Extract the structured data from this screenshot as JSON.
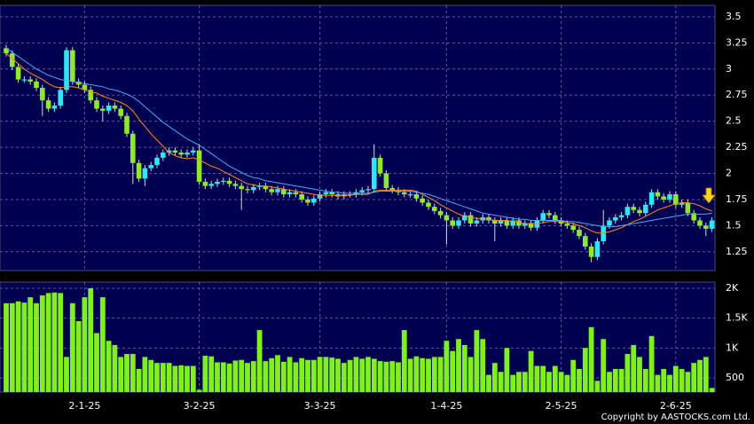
{
  "chart_data": {
    "type": "candlestick",
    "categories": [
      null,
      null,
      null,
      null,
      null,
      null,
      null,
      null,
      null,
      null,
      null,
      null,
      null,
      "2-1-25",
      null,
      null,
      null,
      null,
      null,
      null,
      null,
      null,
      null,
      null,
      null,
      null,
      null,
      null,
      null,
      null,
      null,
      null,
      "3-2-25",
      null,
      null,
      null,
      null,
      null,
      null,
      null,
      null,
      null,
      null,
      null,
      null,
      null,
      null,
      null,
      null,
      null,
      null,
      null,
      "3-3-25",
      null,
      null,
      null,
      null,
      null,
      null,
      null,
      null,
      null,
      null,
      null,
      null,
      null,
      null,
      null,
      null,
      null,
      null,
      null,
      null,
      "1-4-25",
      null,
      null,
      null,
      null,
      null,
      null,
      null,
      null,
      null,
      null,
      null,
      null,
      null,
      null,
      null,
      null,
      null,
      null,
      "2-5-25",
      null,
      null,
      null,
      null,
      null,
      null,
      null,
      null,
      null,
      null,
      null,
      null,
      null,
      null,
      null,
      null,
      null,
      null,
      "2-6-25",
      null,
      null,
      null,
      null,
      null,
      null
    ],
    "open": [
      3.2,
      3.15,
      3.02,
      2.9,
      2.9,
      2.88,
      2.82,
      2.7,
      2.62,
      2.65,
      2.8,
      3.18,
      2.88,
      2.85,
      2.8,
      2.7,
      2.62,
      2.6,
      2.65,
      2.62,
      2.55,
      2.38,
      2.1,
      1.95,
      2.05,
      2.08,
      2.15,
      2.2,
      2.22,
      2.2,
      2.18,
      2.2,
      2.22,
      1.92,
      1.88,
      1.9,
      1.92,
      1.93,
      1.9,
      1.88,
      1.85,
      1.84,
      1.87,
      1.88,
      1.85,
      1.82,
      1.85,
      1.8,
      1.82,
      1.8,
      1.75,
      1.72,
      1.76,
      1.8,
      1.82,
      1.8,
      1.78,
      1.8,
      1.8,
      1.82,
      1.84,
      1.85,
      2.15,
      2.0,
      1.86,
      1.84,
      1.82,
      1.8,
      1.8,
      1.76,
      1.72,
      1.68,
      1.64,
      1.6,
      1.55,
      1.5,
      1.55,
      1.6,
      1.52,
      1.55,
      1.58,
      1.55,
      1.52,
      1.55,
      1.5,
      1.55,
      1.5,
      1.52,
      1.48,
      1.55,
      1.62,
      1.6,
      1.55,
      1.52,
      1.5,
      1.46,
      1.4,
      1.3,
      1.2,
      1.35,
      1.5,
      1.55,
      1.58,
      1.6,
      1.68,
      1.65,
      1.62,
      1.7,
      1.82,
      1.78,
      1.75,
      1.8,
      1.7,
      1.72,
      1.62,
      1.55,
      1.5,
      1.47
    ],
    "high": [
      3.23,
      3.18,
      3.05,
      2.93,
      2.93,
      2.91,
      2.85,
      2.73,
      2.68,
      2.83,
      3.21,
      3.21,
      2.91,
      2.88,
      2.83,
      2.73,
      2.65,
      2.68,
      2.68,
      2.65,
      2.58,
      2.41,
      2.13,
      2.08,
      2.11,
      2.18,
      2.23,
      2.25,
      2.25,
      2.23,
      2.23,
      2.25,
      2.28,
      1.95,
      1.93,
      1.95,
      1.96,
      1.96,
      1.93,
      1.91,
      1.88,
      1.9,
      1.91,
      1.91,
      1.88,
      1.88,
      1.88,
      1.85,
      1.85,
      1.83,
      1.78,
      1.79,
      1.83,
      1.85,
      1.85,
      1.83,
      1.83,
      1.83,
      1.85,
      1.87,
      1.88,
      2.28,
      2.18,
      2.03,
      1.89,
      1.87,
      1.85,
      1.83,
      1.83,
      1.79,
      1.75,
      1.71,
      1.67,
      1.63,
      1.58,
      1.58,
      1.63,
      1.63,
      1.58,
      1.61,
      1.61,
      1.58,
      1.58,
      1.58,
      1.58,
      1.58,
      1.55,
      1.55,
      1.58,
      1.65,
      1.65,
      1.63,
      1.58,
      1.55,
      1.53,
      1.49,
      1.43,
      1.33,
      1.38,
      1.65,
      1.58,
      1.61,
      1.63,
      1.71,
      1.71,
      1.68,
      1.73,
      1.85,
      1.85,
      1.81,
      1.83,
      1.83,
      1.75,
      1.75,
      1.65,
      1.58,
      1.53,
      1.58
    ],
    "low": [
      3.12,
      2.99,
      2.87,
      2.87,
      2.85,
      2.79,
      2.55,
      2.59,
      2.59,
      2.62,
      2.77,
      2.85,
      2.82,
      2.77,
      2.67,
      2.59,
      2.5,
      2.57,
      2.59,
      2.52,
      2.35,
      1.9,
      1.92,
      1.88,
      2.02,
      2.05,
      2.12,
      2.17,
      2.17,
      2.15,
      2.15,
      2.17,
      1.89,
      1.85,
      1.85,
      1.87,
      1.89,
      1.87,
      1.85,
      1.65,
      1.81,
      1.81,
      1.84,
      1.82,
      1.79,
      1.79,
      1.77,
      1.77,
      1.77,
      1.72,
      1.69,
      1.69,
      1.73,
      1.77,
      1.77,
      1.75,
      1.75,
      1.77,
      1.77,
      1.79,
      1.81,
      1.82,
      1.97,
      1.83,
      1.81,
      1.79,
      1.77,
      1.77,
      1.73,
      1.69,
      1.65,
      1.61,
      1.57,
      1.32,
      1.47,
      1.47,
      1.52,
      1.49,
      1.49,
      1.52,
      1.52,
      1.35,
      1.49,
      1.47,
      1.47,
      1.47,
      1.47,
      1.45,
      1.45,
      1.52,
      1.57,
      1.52,
      1.49,
      1.47,
      1.43,
      1.37,
      1.27,
      1.15,
      1.17,
      1.32,
      1.47,
      1.52,
      1.55,
      1.57,
      1.62,
      1.59,
      1.59,
      1.67,
      1.75,
      1.72,
      1.72,
      1.67,
      1.67,
      1.59,
      1.52,
      1.47,
      1.4,
      1.44
    ],
    "close": [
      3.15,
      3.02,
      2.9,
      2.9,
      2.88,
      2.82,
      2.7,
      2.62,
      2.65,
      2.8,
      3.18,
      2.88,
      2.85,
      2.8,
      2.7,
      2.62,
      2.6,
      2.65,
      2.62,
      2.55,
      2.38,
      2.1,
      1.95,
      2.05,
      2.08,
      2.15,
      2.2,
      2.22,
      2.2,
      2.18,
      2.2,
      2.22,
      1.92,
      1.88,
      1.9,
      1.92,
      1.93,
      1.9,
      1.88,
      1.85,
      1.84,
      1.87,
      1.88,
      1.85,
      1.82,
      1.85,
      1.8,
      1.82,
      1.8,
      1.75,
      1.72,
      1.76,
      1.8,
      1.82,
      1.8,
      1.78,
      1.8,
      1.8,
      1.82,
      1.84,
      1.85,
      2.15,
      2.0,
      1.86,
      1.84,
      1.82,
      1.8,
      1.8,
      1.76,
      1.72,
      1.68,
      1.64,
      1.6,
      1.55,
      1.5,
      1.55,
      1.6,
      1.52,
      1.55,
      1.58,
      1.55,
      1.52,
      1.55,
      1.5,
      1.55,
      1.5,
      1.52,
      1.48,
      1.55,
      1.62,
      1.6,
      1.55,
      1.52,
      1.5,
      1.46,
      1.4,
      1.3,
      1.2,
      1.35,
      1.5,
      1.55,
      1.58,
      1.6,
      1.68,
      1.65,
      1.62,
      1.7,
      1.82,
      1.78,
      1.75,
      1.8,
      1.7,
      1.72,
      1.62,
      1.55,
      1.5,
      1.47,
      1.55
    ],
    "up_color": "#2ee6f5",
    "down_color": "#8ee82c",
    "series": [
      {
        "color": "#ff8c1a",
        "values": [
          3.15,
          3.1,
          3.05,
          3.0,
          2.96,
          2.93,
          2.9,
          2.86,
          2.83,
          2.82,
          2.83,
          2.83,
          2.82,
          2.8,
          2.78,
          2.77,
          2.74,
          2.72,
          2.7,
          2.68,
          2.65,
          2.6,
          2.52,
          2.45,
          2.38,
          2.32,
          2.26,
          2.2,
          2.17,
          2.15,
          2.14,
          2.15,
          2.13,
          2.1,
          2.07,
          2.05,
          2.02,
          1.99,
          1.96,
          1.93,
          1.9,
          1.89,
          1.88,
          1.88,
          1.87,
          1.86,
          1.85,
          1.84,
          1.83,
          1.82,
          1.81,
          1.8,
          1.79,
          1.79,
          1.79,
          1.79,
          1.79,
          1.79,
          1.8,
          1.8,
          1.8,
          1.83,
          1.84,
          1.84,
          1.84,
          1.84,
          1.84,
          1.84,
          1.83,
          1.8,
          1.77,
          1.74,
          1.7,
          1.67,
          1.64,
          1.61,
          1.59,
          1.58,
          1.57,
          1.56,
          1.56,
          1.55,
          1.55,
          1.55,
          1.54,
          1.53,
          1.52,
          1.52,
          1.52,
          1.53,
          1.54,
          1.54,
          1.54,
          1.53,
          1.52,
          1.5,
          1.48,
          1.45,
          1.43,
          1.43,
          1.44,
          1.46,
          1.48,
          1.51,
          1.54,
          1.56,
          1.59,
          1.62,
          1.65,
          1.67,
          1.69,
          1.71,
          1.72,
          1.72,
          1.71,
          1.69,
          1.66,
          1.64
        ]
      },
      {
        "color": "#4fa8ff",
        "values": [
          3.2,
          3.16,
          3.12,
          3.08,
          3.04,
          3.0,
          2.97,
          2.94,
          2.92,
          2.9,
          2.89,
          2.88,
          2.87,
          2.86,
          2.85,
          2.84,
          2.83,
          2.81,
          2.8,
          2.78,
          2.76,
          2.73,
          2.69,
          2.64,
          2.59,
          2.54,
          2.49,
          2.45,
          2.41,
          2.37,
          2.33,
          2.3,
          2.27,
          2.23,
          2.19,
          2.15,
          2.11,
          2.07,
          2.04,
          2.01,
          1.98,
          1.96,
          1.95,
          1.93,
          1.92,
          1.91,
          1.9,
          1.89,
          1.88,
          1.87,
          1.86,
          1.85,
          1.84,
          1.83,
          1.82,
          1.82,
          1.81,
          1.81,
          1.81,
          1.81,
          1.81,
          1.82,
          1.83,
          1.83,
          1.83,
          1.83,
          1.83,
          1.83,
          1.82,
          1.81,
          1.8,
          1.78,
          1.76,
          1.74,
          1.72,
          1.7,
          1.68,
          1.66,
          1.64,
          1.62,
          1.61,
          1.6,
          1.59,
          1.58,
          1.57,
          1.56,
          1.56,
          1.55,
          1.55,
          1.55,
          1.55,
          1.55,
          1.55,
          1.54,
          1.54,
          1.53,
          1.52,
          1.51,
          1.5,
          1.49,
          1.49,
          1.49,
          1.5,
          1.51,
          1.52,
          1.53,
          1.54,
          1.55,
          1.56,
          1.57,
          1.58,
          1.59,
          1.6,
          1.61,
          1.61,
          1.61,
          1.61,
          1.62
        ]
      }
    ],
    "ylim": [
      1.07,
      3.61
    ],
    "yticks": [
      1.25,
      1.5,
      1.75,
      2,
      2.25,
      2.5,
      2.75,
      3,
      3.25,
      3.5
    ],
    "grid": true,
    "volume": {
      "type": "bar",
      "color": "#7ff01e",
      "values": [
        1750,
        1750,
        1780,
        1760,
        1850,
        1750,
        1880,
        1920,
        1930,
        1920,
        850,
        1750,
        1450,
        1850,
        2000,
        1250,
        1850,
        1120,
        1050,
        850,
        900,
        900,
        650,
        850,
        800,
        750,
        750,
        750,
        700,
        710,
        700,
        700,
        300,
        870,
        860,
        760,
        760,
        740,
        790,
        800,
        750,
        780,
        1300,
        780,
        830,
        880,
        770,
        850,
        760,
        830,
        800,
        800,
        850,
        850,
        840,
        820,
        750,
        800,
        850,
        820,
        850,
        820,
        780,
        770,
        780,
        760,
        1300,
        820,
        860,
        830,
        820,
        850,
        850,
        1120,
        950,
        1150,
        1050,
        850,
        1300,
        1150,
        550,
        750,
        600,
        1000,
        550,
        600,
        600,
        950,
        700,
        700,
        600,
        700,
        600,
        550,
        800,
        650,
        1000,
        1350,
        450,
        1150,
        600,
        650,
        650,
        900,
        1050,
        850,
        650,
        1200,
        550,
        650,
        550,
        700,
        650,
        600,
        750,
        800,
        850,
        330
      ],
      "ylim": [
        262,
        2104
      ],
      "yticks": [
        {
          "value": 500,
          "label": "500"
        },
        {
          "value": 1000,
          "label": "1K"
        },
        {
          "value": 1500,
          "label": "1.5K"
        },
        {
          "value": 2000,
          "label": "2K"
        }
      ]
    },
    "credit": "Copyright by AASTOCKS.com Ltd."
  }
}
